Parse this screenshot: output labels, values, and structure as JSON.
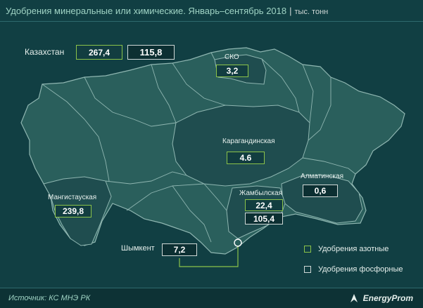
{
  "header": {
    "title": "Удобрения минеральные или химические. Январь–сентябрь 2018",
    "unit": "тыс. тонн"
  },
  "kazakhstan": {
    "label": "Казахстан",
    "nitrogen": "267,4",
    "phosphorus": "115,8"
  },
  "regions": {
    "sko": {
      "name": "СКО",
      "nitrogen": "3,2"
    },
    "karaganda": {
      "name": "Карагандинская",
      "nitrogen": "4.6"
    },
    "almaty": {
      "name": "Алматинская",
      "phosphorus": "0,6"
    },
    "zhambyl": {
      "name": "Жамбылская",
      "nitrogen": "22,4",
      "phosphorus": "105,4"
    },
    "mangystau": {
      "name": "Мангистауская",
      "nitrogen": "239,8"
    },
    "shymkent": {
      "name": "Шымкент",
      "phosphorus": "7,2"
    }
  },
  "legend": {
    "nitrogen": "Удобрения азотные",
    "phosphorus": "Удобрения фосфорные"
  },
  "footer": {
    "source": "Источник: КС МНЭ РК",
    "brand": "EnergyProm"
  },
  "colors": {
    "background": "#113f43",
    "map_fill": "#2a5f5c",
    "highlight_fill": "#1f4d4f",
    "border_line": "#8fb6b1",
    "nitrogen_box": "#8bc34a",
    "phosphorus_box": "#cfd8d6"
  },
  "icons": {
    "brand": "energyprom-logo-icon",
    "shymkent_marker": "city-marker-icon"
  }
}
